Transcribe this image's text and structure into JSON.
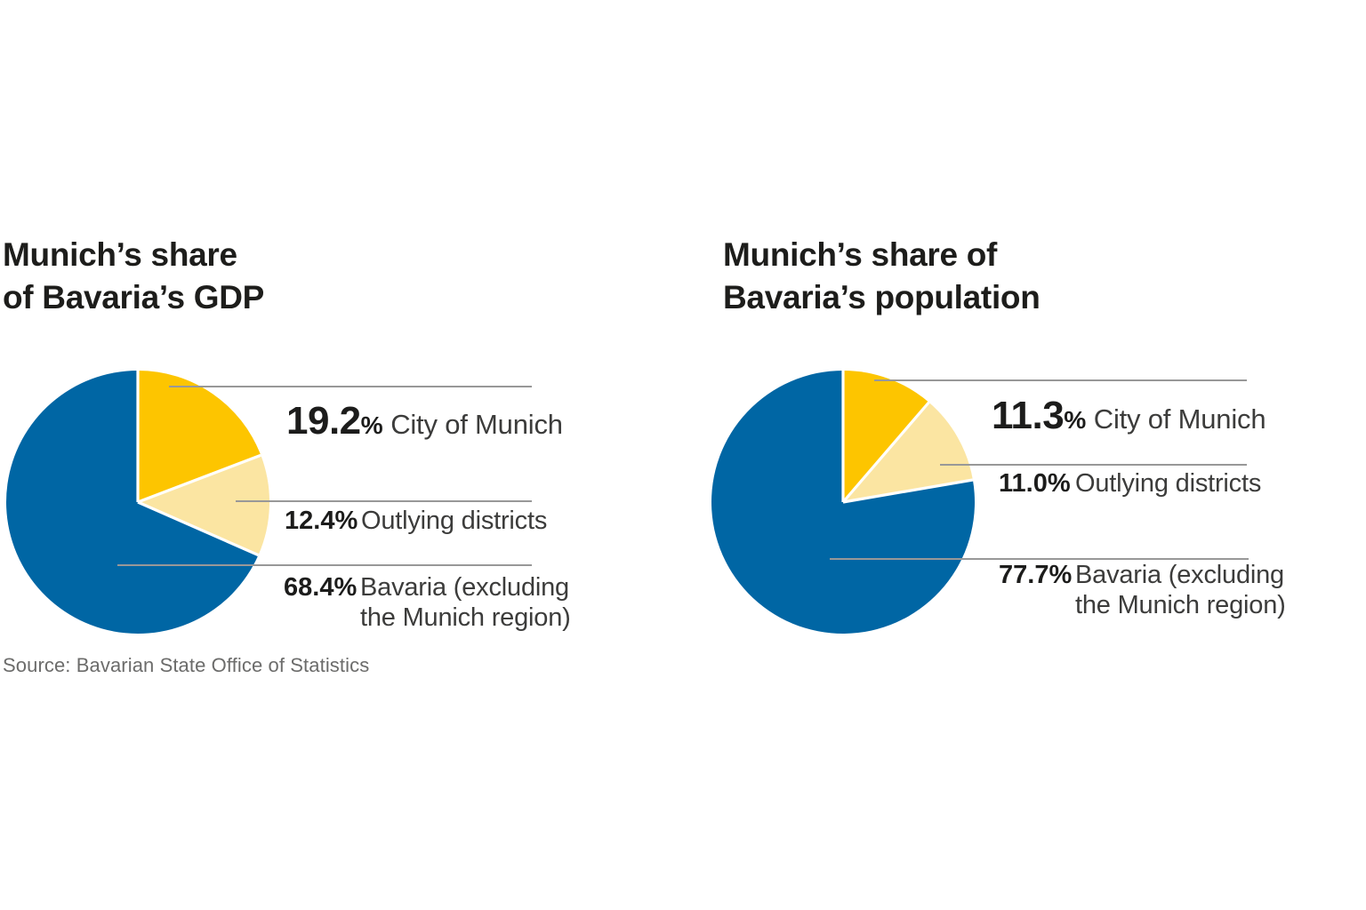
{
  "page": {
    "background": "#FFFFFF"
  },
  "unit": "%",
  "source_note": "Source: Bavarian State Office of Statistics",
  "colors": {
    "city_of_munich": "#FDC500",
    "outlying_districts": "#FBE5A2",
    "bavaria_rest": "#0066A4",
    "leader_line": "#989898",
    "slice_separator": "#FFFFFF",
    "title_text": "#1D1D1B",
    "value_text": "#1C1C1B",
    "label_text": "#3C3C3B",
    "source_text": "#6C6C6B"
  },
  "chart_data": [
    {
      "type": "pie",
      "title": "Munich’s share\nof Bavaria’s GDP",
      "start_angle": "12 o'clock",
      "direction": "clockwise",
      "legend_position": "right",
      "slices": [
        {
          "label": "City of Munich",
          "value": 19.2,
          "display": "19.2",
          "color": "#FDC500"
        },
        {
          "label": "Outlying districts",
          "value": 12.4,
          "display": "12.4",
          "color": "#FBE5A2"
        },
        {
          "label": "Bavaria (excluding the Munich region)",
          "value": 68.4,
          "display": "68.4",
          "color": "#0066A4"
        }
      ]
    },
    {
      "type": "pie",
      "title": "Munich’s share of\nBavaria’s population",
      "start_angle": "12 o'clock",
      "direction": "clockwise",
      "legend_position": "right",
      "slices": [
        {
          "label": "City of Munich",
          "value": 11.3,
          "display": "11.3",
          "color": "#FDC500"
        },
        {
          "label": "Outlying districts",
          "value": 11.0,
          "display": "11.0",
          "color": "#FBE5A2"
        },
        {
          "label": "Bavaria (excluding the Munich region)",
          "value": 77.7,
          "display": "77.7",
          "color": "#0066A4"
        }
      ]
    }
  ]
}
